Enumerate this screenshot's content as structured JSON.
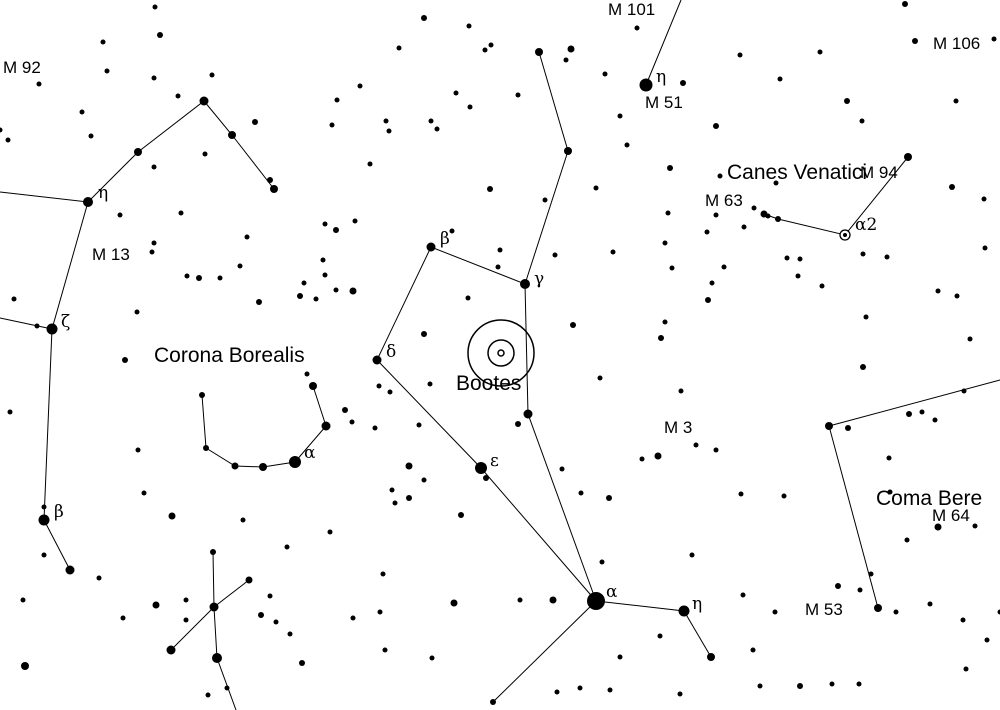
{
  "colors": {
    "background": "#ffffff",
    "ink": "#000000"
  },
  "constellations": {
    "bootes": "Bootes",
    "corona_borealis": "Corona Borealis",
    "canes_venatici": "Canes Venatici",
    "coma_berenices": "Coma Bere"
  },
  "messier": {
    "m92": "M 92",
    "m101": "M 101",
    "m106": "M 106",
    "m51": "M 51",
    "m63": "M 63",
    "m94": "M 94",
    "m13": "M 13",
    "m3": "M 3",
    "m64": "M 64",
    "m53": "M 53"
  },
  "greek": {
    "boo_alpha": "α",
    "boo_beta": "β",
    "boo_gamma": "γ",
    "boo_delta": "δ",
    "boo_epsilon": "ε",
    "boo_eta": "η",
    "crb_alpha": "α",
    "uma_eta": "η",
    "cvn_alpha2": "α2",
    "her_eta": "η",
    "her_zeta": "ζ",
    "her_beta": "β"
  },
  "target_marker": "bullseye"
}
